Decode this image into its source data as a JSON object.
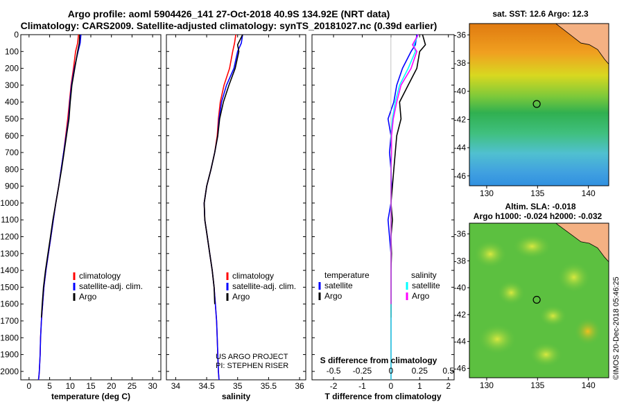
{
  "header": {
    "title_line1": "Argo profile: aoml 5904426_141 27-Oct-2018 40.9S 134.92E (NRT data)",
    "title_line2": "Climatology: CARS2009. Satellite-adjusted climatology: synTS_20181027.nc (0.39d earlier)"
  },
  "colors": {
    "climatology": "#ff0000",
    "satellite": "#0000ff",
    "argo": "#000000",
    "sal_satellite": "#00ffff",
    "sal_argo": "#ff00ff",
    "land": "#f4b183"
  },
  "chart_data": [
    {
      "type": "line",
      "id": "temperature",
      "xlabel": "temperature (deg C)",
      "xlim": [
        -2,
        32
      ],
      "ylim": [
        2050,
        0
      ],
      "xticks": [
        0,
        5,
        10,
        15,
        20,
        25,
        30
      ],
      "yticks": [
        0,
        100,
        200,
        300,
        400,
        500,
        600,
        700,
        800,
        900,
        1000,
        1100,
        1200,
        1300,
        1400,
        1500,
        1600,
        1700,
        1800,
        1900,
        2000
      ],
      "legend": [
        "climatology",
        "satellite-adj. clim.",
        "Argo"
      ],
      "legend_position": "middle-right",
      "series": [
        {
          "name": "climatology",
          "color": "#ff0000",
          "x": [
            12.0,
            11.8,
            11.3,
            10.8,
            10.2,
            9.8,
            9.4,
            8.9,
            8.4,
            7.8,
            7.2,
            6.5,
            5.9,
            5.3,
            4.7,
            4.1,
            3.6,
            3.3,
            3.0,
            2.8,
            2.7,
            2.6,
            2.5,
            2.4,
            2.3
          ],
          "y": [
            0,
            50,
            100,
            200,
            300,
            400,
            500,
            600,
            700,
            800,
            900,
            1000,
            1100,
            1200,
            1300,
            1400,
            1500,
            1600,
            1700,
            1800,
            1900,
            1950,
            2000,
            2030,
            2050
          ]
        },
        {
          "name": "satellite-adj. clim.",
          "color": "#0000ff",
          "x": [
            12.6,
            12.4,
            11.9,
            11.0,
            10.3,
            9.9,
            9.6,
            9.0,
            8.4,
            7.8,
            7.2,
            6.5,
            5.9,
            5.3,
            4.7,
            4.1,
            3.6,
            3.3,
            3.0,
            2.8,
            2.7,
            2.6,
            2.5,
            2.4,
            2.3
          ],
          "y": [
            0,
            50,
            100,
            200,
            300,
            400,
            500,
            600,
            700,
            800,
            900,
            1000,
            1100,
            1200,
            1300,
            1400,
            1500,
            1600,
            1700,
            1800,
            1900,
            1950,
            2000,
            2030,
            2050
          ]
        },
        {
          "name": "Argo",
          "color": "#000000",
          "x": [
            12.3,
            12.2,
            11.8,
            11.1,
            10.4,
            10.0,
            9.7,
            9.1,
            8.5,
            7.9,
            7.2,
            6.5,
            5.8,
            5.2,
            4.6,
            4.0,
            3.5,
            3.2,
            3.0
          ],
          "y": [
            0,
            50,
            100,
            200,
            300,
            400,
            500,
            600,
            700,
            800,
            900,
            1000,
            1100,
            1200,
            1300,
            1400,
            1500,
            1600,
            1680
          ]
        }
      ]
    },
    {
      "type": "line",
      "id": "salinity",
      "xlabel": "salinity",
      "xlim": [
        33.85,
        36.1
      ],
      "ylim": [
        2050,
        0
      ],
      "xticks": [
        34,
        34.5,
        35,
        35.5,
        36
      ],
      "legend": [
        "climatology",
        "satellite-adj. clim.",
        "Argo"
      ],
      "legend_position": "middle-right",
      "annotations": [
        "US ARGO PROJECT",
        "PI: STEPHEN RISER"
      ],
      "series": [
        {
          "name": "climatology",
          "color": "#ff0000",
          "x": [
            34.97,
            34.95,
            34.92,
            34.87,
            34.78,
            34.72,
            34.69,
            34.67,
            34.63,
            34.57,
            34.5,
            34.46,
            34.47,
            34.51,
            34.55,
            34.59,
            34.62,
            34.64,
            34.66,
            34.67,
            34.68,
            34.69,
            34.7
          ],
          "y": [
            0,
            50,
            100,
            200,
            300,
            400,
            500,
            600,
            700,
            800,
            900,
            1000,
            1100,
            1200,
            1300,
            1400,
            1500,
            1600,
            1700,
            1800,
            1900,
            2000,
            2050
          ]
        },
        {
          "name": "satellite-adj. clim.",
          "color": "#0000ff",
          "x": [
            35.08,
            35.06,
            35.0,
            34.94,
            34.82,
            34.74,
            34.7,
            34.68,
            34.63,
            34.57,
            34.5,
            34.46,
            34.47,
            34.51,
            34.55,
            34.59,
            34.62,
            34.64,
            34.66,
            34.67,
            34.68,
            34.69,
            34.7
          ],
          "y": [
            0,
            50,
            100,
            200,
            300,
            400,
            500,
            600,
            700,
            800,
            900,
            1000,
            1100,
            1200,
            1300,
            1400,
            1500,
            1600,
            1700,
            1800,
            1900,
            2000,
            2050
          ]
        },
        {
          "name": "Argo",
          "color": "#000000",
          "x": [
            35.08,
            35.0,
            35.02,
            34.96,
            34.86,
            34.77,
            34.71,
            34.68,
            34.63,
            34.57,
            34.5,
            34.46,
            34.47,
            34.51,
            34.55,
            34.59,
            34.62,
            34.63
          ],
          "y": [
            0,
            60,
            100,
            200,
            300,
            400,
            500,
            600,
            700,
            800,
            900,
            1000,
            1100,
            1200,
            1300,
            1400,
            1500,
            1600
          ]
        }
      ]
    },
    {
      "type": "line",
      "id": "difference",
      "xlabel": "T difference from climatology",
      "xlabel2": "S difference from climatology",
      "xlim": [
        -2.75,
        2.2
      ],
      "ylim": [
        2050,
        0
      ],
      "xticks": [
        -2,
        -1,
        0,
        1,
        2
      ],
      "xticks2": [
        "-0.5",
        "-0.25",
        "0",
        "0.25",
        "0.5"
      ],
      "legend_left_title": "temperature",
      "legend_right_title": "salinity",
      "legend_left": [
        "satellite",
        "Argo"
      ],
      "legend_right": [
        "satellite",
        "Argo"
      ],
      "series": [
        {
          "name": "T satellite",
          "color": "#0000ff",
          "x": [
            0.9,
            0.85,
            0.7,
            0.4,
            0.2,
            0.1,
            -0.1,
            0.0,
            -0.05,
            0.0,
            0.02,
            0.0,
            -0.1,
            -0.05,
            0.0,
            0.0,
            0.0,
            0.0,
            0.0,
            0.0,
            0.0,
            0.0
          ],
          "y": [
            0,
            60,
            100,
            200,
            300,
            400,
            500,
            600,
            700,
            800,
            900,
            1000,
            1100,
            1200,
            1300,
            1400,
            1500,
            1600,
            1700,
            1800,
            1900,
            2050
          ]
        },
        {
          "name": "T Argo",
          "color": "#000000",
          "x": [
            1.1,
            1.2,
            1.0,
            0.9,
            0.6,
            0.3,
            0.35,
            0.2,
            0.15,
            0.1,
            0.05,
            0.0,
            0.05,
            0.0,
            0.02,
            0.0,
            0.0,
            0.0
          ],
          "y": [
            0,
            60,
            100,
            200,
            300,
            400,
            500,
            600,
            700,
            800,
            900,
            1000,
            1100,
            1200,
            1300,
            1400,
            1500,
            1680
          ]
        },
        {
          "name": "S satellite",
          "color": "#00ffff",
          "x": [
            0.95,
            0.8,
            0.85,
            0.6,
            0.3,
            0.15,
            0.05,
            0.0,
            0.02,
            0.0,
            0.0,
            0.0,
            0.0,
            0.0,
            0.0,
            0.0,
            0.0,
            0.0,
            0.0,
            0.0,
            0.0,
            0.0
          ],
          "y": [
            0,
            60,
            100,
            200,
            300,
            400,
            500,
            600,
            700,
            800,
            900,
            1000,
            1100,
            1200,
            1300,
            1400,
            1500,
            1600,
            1700,
            1800,
            1900,
            2050
          ]
        },
        {
          "name": "S Argo",
          "color": "#ff00ff",
          "x": [
            0.95,
            0.75,
            0.9,
            0.7,
            0.35,
            0.2,
            0.08,
            0.02,
            0.02,
            0.0,
            0.0,
            0.0,
            0.0,
            0.0,
            0.0,
            0.0,
            0.0
          ],
          "y": [
            0,
            60,
            100,
            200,
            300,
            400,
            500,
            600,
            700,
            800,
            900,
            1000,
            1100,
            1200,
            1300,
            1400,
            1600
          ]
        }
      ]
    },
    {
      "type": "heatmap",
      "id": "sst_map",
      "title": "sat. SST: 12.6 Argo: 12.3",
      "xticks": [
        130,
        135,
        140
      ],
      "yticks": [
        -36,
        -38,
        -40,
        -42,
        -44,
        -46
      ],
      "xlim": [
        128.3,
        142
      ],
      "ylim": [
        -46.7,
        -35.2
      ],
      "marker": {
        "lon": 134.92,
        "lat": -40.9
      }
    },
    {
      "type": "heatmap",
      "id": "sla_map",
      "title": "Altim. SLA: -0.018",
      "subtitle": "Argo h1000: -0.024 h2000: -0.032",
      "xticks": [
        130,
        135,
        140
      ],
      "yticks": [
        -36,
        -38,
        -40,
        -42,
        -44,
        -46
      ],
      "xlim": [
        128.3,
        142
      ],
      "ylim": [
        -46.7,
        -35.2
      ],
      "marker": {
        "lon": 134.92,
        "lat": -40.9
      }
    }
  ],
  "footer": {
    "stamp": "©IMOS 20-Dec-2018 05:46:25"
  }
}
